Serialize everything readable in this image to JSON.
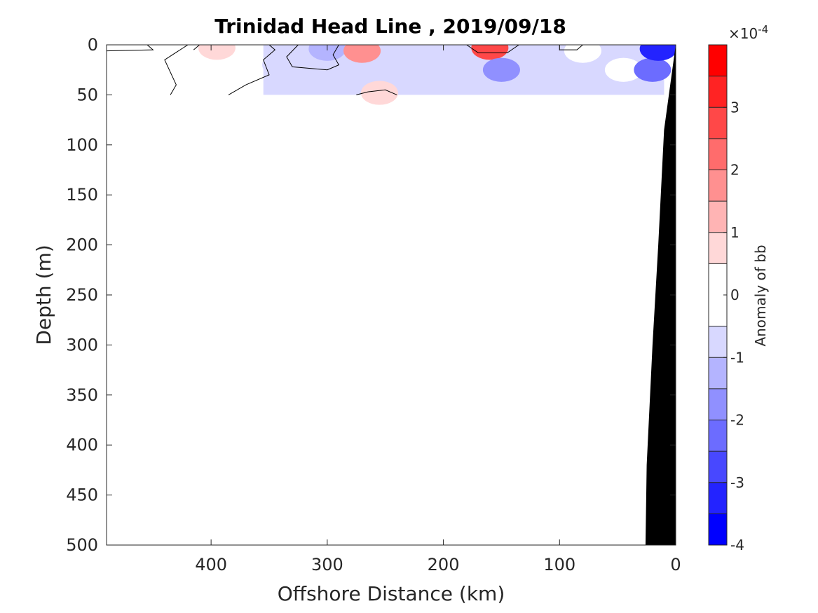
{
  "chart_data": {
    "type": "heatmap",
    "title": "Trinidad Head Line , 2019/09/18",
    "xlabel": "Offshore Distance (km)",
    "ylabel": "Depth (m)",
    "xlim": [
      490,
      0
    ],
    "ylim": [
      0,
      500
    ],
    "x_reversed": true,
    "y_reversed": true,
    "xticks": [
      400,
      300,
      200,
      100,
      0
    ],
    "yticks": [
      0,
      50,
      100,
      150,
      200,
      250,
      300,
      350,
      400,
      450,
      500
    ],
    "colorbar": {
      "label": "Anomaly of bb",
      "exponent_label": "×10",
      "exponent_power": "-4",
      "scale": 0.0001,
      "limits": [
        -4,
        4
      ],
      "ticks": [
        3,
        2,
        1,
        0,
        -1,
        -2,
        -3,
        -4
      ],
      "levels": [
        -4,
        -3.5,
        -3,
        -2.5,
        -2,
        -1.5,
        -1,
        -0.5,
        0.5,
        1,
        1.5,
        2,
        2.5,
        3,
        3.5,
        4
      ],
      "colors": [
        "#0000ff",
        "#2323ff",
        "#4848ff",
        "#6c6cff",
        "#9090ff",
        "#b4b4ff",
        "#d8d8ff",
        "#ffffff",
        "#ffd8d8",
        "#ffb4b4",
        "#ff9090",
        "#ff6c6c",
        "#ff4848",
        "#ff2323",
        "#ff0000"
      ]
    },
    "anomaly_patches": [
      {
        "x": 470,
        "depth": 3,
        "value": 0.2
      },
      {
        "x": 395,
        "depth": 3,
        "value": 0.6
      },
      {
        "x": 340,
        "depth": 20,
        "value": -0.7
      },
      {
        "x": 300,
        "depth": 4,
        "value": -1.3
      },
      {
        "x": 270,
        "depth": 6,
        "value": 1.5
      },
      {
        "x": 255,
        "depth": 48,
        "value": 0.6
      },
      {
        "x": 220,
        "depth": 25,
        "value": -0.7
      },
      {
        "x": 160,
        "depth": 3,
        "value": 2.6
      },
      {
        "x": 150,
        "depth": 25,
        "value": -1.6
      },
      {
        "x": 100,
        "depth": 30,
        "value": -0.8
      },
      {
        "x": 80,
        "depth": 6,
        "value": 0.2
      },
      {
        "x": 45,
        "depth": 25,
        "value": 0.2
      },
      {
        "x": 20,
        "depth": 25,
        "value": -2.3
      },
      {
        "x": 15,
        "depth": 4,
        "value": -3.5
      }
    ],
    "bathymetry": {
      "fill_color": "#000000",
      "points": [
        [
          0,
          0
        ],
        [
          10,
          85
        ],
        [
          15,
          200
        ],
        [
          20,
          300
        ],
        [
          25,
          420
        ],
        [
          26,
          500
        ],
        [
          0,
          500
        ]
      ]
    }
  }
}
